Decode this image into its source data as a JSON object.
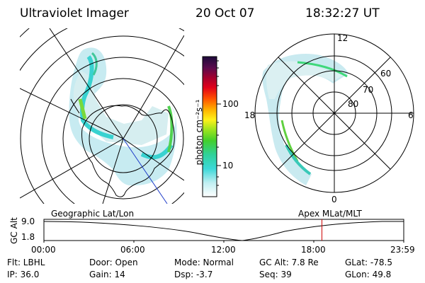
{
  "header": {
    "title": "Ultraviolet Imager",
    "date": "20 Oct 07",
    "time": "18:32:27 UT"
  },
  "colorbar": {
    "unit_label": "photon cm⁻²s⁻¹",
    "ticks": [
      "100",
      "10"
    ]
  },
  "polar_plot": {
    "clock_labels": [
      "12",
      "18",
      "6",
      "0"
    ],
    "lat_labels": [
      "60",
      "70",
      "80"
    ]
  },
  "timeline": {
    "y_axis_label": "GC Alt",
    "y_ticks": [
      "9.0",
      "1.8"
    ],
    "left_caption": "Geographic Lat/Lon",
    "right_caption": "Apex MLat/MLT",
    "x_ticks": [
      "00:00",
      "06:00",
      "12:00",
      "18:00",
      "23:59"
    ],
    "marker_fraction": 0.7725,
    "marker_color": "#cc0000"
  },
  "info": {
    "filter": "Flt: LBHL",
    "ip": "IP: 36.0",
    "door": "Door: Open",
    "gain": "Gain: 14",
    "mode": "Mode: Normal",
    "dsp": "Dsp:   -3.7",
    "gc_alt": "GC Alt: 7.8 Re",
    "seq": "Seq: 39",
    "glat": "GLat:   -78.5",
    "glon": "GLon:   49.8"
  }
}
